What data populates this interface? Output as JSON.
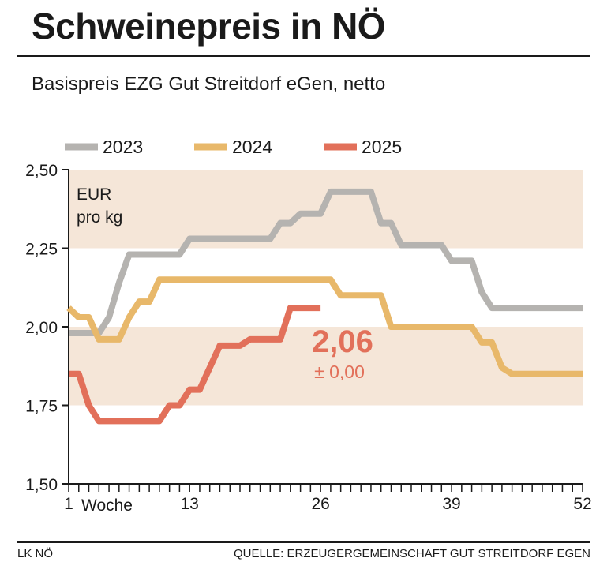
{
  "header": {
    "title": "Schweinepreis in NÖ",
    "subtitle": "Basispreis EZG Gut Streitdorf eGen, netto"
  },
  "footer": {
    "left": "LK NÖ",
    "right": "QUELLE: ERZEUGERGEMEINSCHAFT GUT STREITDORF EGEN"
  },
  "chart_data": {
    "type": "line",
    "title": "Schweinepreis in NÖ",
    "subtitle": "Basispreis EZG Gut Streitdorf eGen, netto",
    "unit_label": [
      "EUR",
      "pro kg"
    ],
    "xlabel": "Woche",
    "xlim": [
      1,
      52
    ],
    "ylim": [
      1.5,
      2.5
    ],
    "y_ticks": [
      "1,50",
      "1,75",
      "2,00",
      "2,25",
      "2,50"
    ],
    "y_tick_values": [
      1.5,
      1.75,
      2.0,
      2.25,
      2.5
    ],
    "x_ticks": [
      "1",
      "13",
      "26",
      "39",
      "52"
    ],
    "x_tick_values": [
      1,
      13,
      26,
      39,
      52
    ],
    "shaded_bands": [
      [
        1.75,
        2.0
      ],
      [
        2.25,
        2.5
      ]
    ],
    "legend_position": "top",
    "series": [
      {
        "name": "2023",
        "color": "#b5b3b0",
        "x": [
          1,
          2,
          3,
          4,
          5,
          6,
          7,
          8,
          9,
          10,
          11,
          12,
          13,
          14,
          15,
          16,
          17,
          18,
          19,
          20,
          21,
          22,
          23,
          24,
          25,
          26,
          27,
          28,
          29,
          30,
          31,
          32,
          33,
          34,
          35,
          36,
          37,
          38,
          39,
          40,
          41,
          42,
          43,
          44,
          45,
          46,
          47,
          48,
          49,
          50,
          51,
          52
        ],
        "y": [
          1.98,
          1.98,
          1.98,
          1.98,
          2.03,
          2.14,
          2.23,
          2.23,
          2.23,
          2.23,
          2.23,
          2.23,
          2.28,
          2.28,
          2.28,
          2.28,
          2.28,
          2.28,
          2.28,
          2.28,
          2.28,
          2.33,
          2.33,
          2.36,
          2.36,
          2.36,
          2.43,
          2.43,
          2.43,
          2.43,
          2.43,
          2.33,
          2.33,
          2.26,
          2.26,
          2.26,
          2.26,
          2.26,
          2.21,
          2.21,
          2.21,
          2.11,
          2.06,
          2.06,
          2.06,
          2.06,
          2.06,
          2.06,
          2.06,
          2.06,
          2.06,
          2.06
        ]
      },
      {
        "name": "2024",
        "color": "#e8b86a",
        "x": [
          1,
          2,
          3,
          4,
          5,
          6,
          7,
          8,
          9,
          10,
          11,
          12,
          13,
          14,
          15,
          16,
          17,
          18,
          19,
          20,
          21,
          22,
          23,
          24,
          25,
          26,
          27,
          28,
          29,
          30,
          31,
          32,
          33,
          34,
          35,
          36,
          37,
          38,
          39,
          40,
          41,
          42,
          43,
          44,
          45,
          46,
          47,
          48,
          49,
          50,
          51,
          52
        ],
        "y": [
          2.06,
          2.03,
          2.03,
          1.96,
          1.96,
          1.96,
          2.03,
          2.08,
          2.08,
          2.15,
          2.15,
          2.15,
          2.15,
          2.15,
          2.15,
          2.15,
          2.15,
          2.15,
          2.15,
          2.15,
          2.15,
          2.15,
          2.15,
          2.15,
          2.15,
          2.15,
          2.15,
          2.1,
          2.1,
          2.1,
          2.1,
          2.1,
          2.0,
          2.0,
          2.0,
          2.0,
          2.0,
          2.0,
          2.0,
          2.0,
          2.0,
          1.95,
          1.95,
          1.87,
          1.85,
          1.85,
          1.85,
          1.85,
          1.85,
          1.85,
          1.85,
          1.85
        ]
      },
      {
        "name": "2025",
        "color": "#e2705a",
        "x": [
          1,
          2,
          3,
          4,
          5,
          6,
          7,
          8,
          9,
          10,
          11,
          12,
          13,
          14,
          15,
          16,
          17,
          18,
          19,
          20,
          21,
          22,
          23,
          24,
          25,
          26
        ],
        "y": [
          1.85,
          1.85,
          1.75,
          1.7,
          1.7,
          1.7,
          1.7,
          1.7,
          1.7,
          1.7,
          1.75,
          1.75,
          1.8,
          1.8,
          1.87,
          1.94,
          1.94,
          1.94,
          1.96,
          1.96,
          1.96,
          1.96,
          2.06,
          2.06,
          2.06,
          2.06
        ]
      }
    ],
    "annotations": [
      {
        "text": "2,06",
        "color": "#e2705a"
      },
      {
        "text": "± 0,00",
        "color": "#e2705a"
      }
    ]
  }
}
